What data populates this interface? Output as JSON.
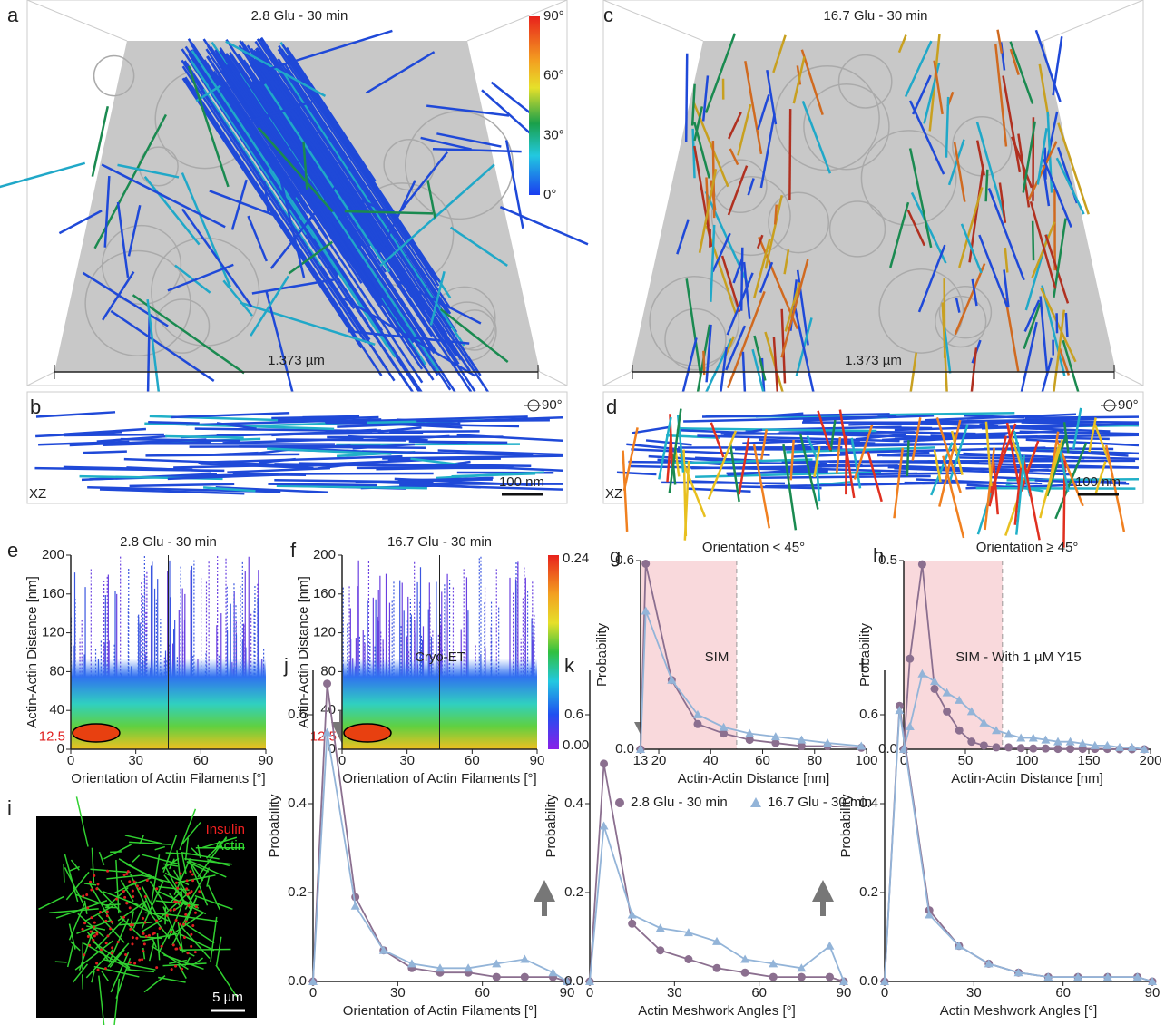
{
  "image_panels": [
    {
      "letter": "a",
      "title": "2.8 Glu - 30 min",
      "scale_label": "1.373 µm",
      "colorbar_labels": [
        "90°",
        "60°",
        "30°",
        "0°"
      ]
    },
    {
      "letter": "b",
      "view_label": "XZ",
      "rotation_label": "90°",
      "scale_label": "100 nm"
    },
    {
      "letter": "c",
      "title": "16.7 Glu - 30 min",
      "scale_label": "1.373 µm"
    },
    {
      "letter": "d",
      "view_label": "XZ",
      "rotation_label": "90°",
      "scale_label": "100 nm"
    },
    {
      "letter": "i",
      "labels": [
        "Insulin",
        "Actin"
      ],
      "scale_label": "5 µm"
    }
  ],
  "chart_data": [
    {
      "type": "heatmap",
      "letter": "e",
      "title": "2.8 Glu - 30 min",
      "xlabel": "Orientation of Actin Filaments [°]",
      "ylabel": "Actin-Actin Distance [nm]",
      "xlim": [
        0,
        90
      ],
      "xticks": [
        0,
        30,
        60,
        90
      ],
      "ylim": [
        0,
        200
      ],
      "yticks": [
        0,
        40,
        80,
        120,
        160,
        200
      ],
      "highlight_tick": 12.5,
      "divider": 45
    },
    {
      "type": "heatmap",
      "letter": "f",
      "title": "16.7 Glu - 30 min",
      "xlabel": "Orientation of Actin Filaments [°]",
      "ylabel": "Actin-Actin Distance [nm]",
      "xlim": [
        0,
        90
      ],
      "xticks": [
        0,
        30,
        60,
        90
      ],
      "ylim": [
        0,
        200
      ],
      "yticks": [
        0,
        40,
        80,
        120,
        160,
        200
      ],
      "highlight_tick": 12.5,
      "divider": 45,
      "colorbar_ticks": [
        0.24,
        {
          "value": 0,
          "label": "0.00"
        }
      ]
    },
    {
      "type": "line",
      "letter": "g",
      "title": "Orientation < 45°",
      "xlabel": "Actin-Actin Distance [nm]",
      "ylabel": "Probability",
      "xlim": [
        13,
        100
      ],
      "xticks": [
        13,
        20,
        40,
        60,
        80,
        100
      ],
      "ylim": [
        0,
        0.6
      ],
      "yticks": [
        {
          "value": 0,
          "label": "0.0"
        },
        0.6
      ],
      "shaded_range": [
        13,
        50
      ],
      "x": [
        13,
        15,
        25,
        35,
        45,
        55,
        65,
        75,
        85,
        98
      ],
      "series": [
        {
          "name": "2.8 Glu - 30 min",
          "color": "#8b6f8f",
          "marker": "circle",
          "values": [
            0,
            0.59,
            0.22,
            0.08,
            0.05,
            0.03,
            0.02,
            0.01,
            0.01,
            0.005
          ]
        },
        {
          "name": "16.7 Glu - 30 min",
          "color": "#93b4d8",
          "marker": "triangle",
          "values": [
            0,
            0.44,
            0.22,
            0.11,
            0.07,
            0.05,
            0.04,
            0.03,
            0.02,
            0.01
          ]
        }
      ]
    },
    {
      "type": "line",
      "letter": "h",
      "title": "Orientation ≥ 45°",
      "xlabel": "Actin-Actin Distance [nm]",
      "ylabel": "Probability",
      "xlim": [
        0,
        200
      ],
      "xticks": [
        0,
        50,
        100,
        150,
        200
      ],
      "ylim": [
        0,
        0.5
      ],
      "yticks": [
        {
          "value": 0,
          "label": "0.0"
        },
        0.5
      ],
      "shaded_range": [
        0,
        80
      ],
      "x": [
        0,
        5,
        15,
        25,
        35,
        45,
        55,
        65,
        75,
        85,
        95,
        105,
        115,
        125,
        135,
        145,
        155,
        165,
        175,
        185,
        195
      ],
      "series": [
        {
          "color": "#8b6f8f",
          "marker": "circle",
          "values": [
            0,
            0.24,
            0.49,
            0.16,
            0.1,
            0.05,
            0.02,
            0.01,
            0.005,
            0.005,
            0.003,
            0.002,
            0.002,
            0.001,
            0.001,
            0.001,
            0.001,
            0.001,
            0,
            0,
            0
          ]
        },
        {
          "color": "#93b4d8",
          "marker": "triangle",
          "values": [
            0,
            0.06,
            0.2,
            0.18,
            0.15,
            0.13,
            0.1,
            0.07,
            0.05,
            0.04,
            0.03,
            0.03,
            0.025,
            0.02,
            0.02,
            0.015,
            0.01,
            0.01,
            0.005,
            0.005,
            0
          ]
        }
      ]
    },
    {
      "type": "line",
      "letter": "j",
      "title": "Cryo-ET",
      "xlabel": "Orientation of Actin Filaments [°]",
      "ylabel": "Probability",
      "xlim": [
        0,
        90
      ],
      "xticks": [
        0,
        30,
        60,
        90
      ],
      "ylim": [
        0,
        0.7
      ],
      "yticks": [
        {
          "value": 0,
          "label": "0.0"
        },
        0.2,
        0.4,
        0.6
      ],
      "x": [
        0,
        5,
        15,
        25,
        35,
        45,
        55,
        65,
        75,
        85,
        90
      ],
      "series": [
        {
          "color": "#8b6f8f",
          "marker": "circle",
          "values": [
            0,
            0.67,
            0.19,
            0.07,
            0.03,
            0.02,
            0.02,
            0.01,
            0.01,
            0.01,
            0
          ]
        },
        {
          "color": "#93b4d8",
          "marker": "triangle",
          "values": [
            0,
            0.56,
            0.17,
            0.07,
            0.04,
            0.03,
            0.03,
            0.04,
            0.05,
            0.02,
            0
          ]
        }
      ]
    },
    {
      "type": "line",
      "letter": "k",
      "title": "SIM",
      "xlabel": "Actin Meshwork Angles [°]",
      "ylabel": "Probability",
      "xlim": [
        0,
        90
      ],
      "xticks": [
        0,
        30,
        60,
        90
      ],
      "ylim": [
        0,
        0.7
      ],
      "yticks": [
        {
          "value": 0,
          "label": "0.0"
        },
        0.2,
        0.4,
        0.6
      ],
      "x": [
        0,
        5,
        15,
        25,
        35,
        45,
        55,
        65,
        75,
        85,
        90
      ],
      "series": [
        {
          "color": "#8b6f8f",
          "marker": "circle",
          "values": [
            0,
            0.49,
            0.13,
            0.07,
            0.05,
            0.03,
            0.02,
            0.01,
            0.01,
            0.01,
            0
          ]
        },
        {
          "color": "#93b4d8",
          "marker": "triangle",
          "values": [
            0,
            0.35,
            0.15,
            0.12,
            0.11,
            0.09,
            0.05,
            0.04,
            0.03,
            0.08,
            0
          ]
        }
      ]
    },
    {
      "type": "line",
      "letter": "l",
      "title": "SIM - With 1 µM Y15",
      "xlabel": "Actin Meshwork Angles [°]",
      "ylabel": "Probability",
      "xlim": [
        0,
        90
      ],
      "xticks": [
        0,
        30,
        60,
        90
      ],
      "ylim": [
        0,
        0.7
      ],
      "yticks": [
        {
          "value": 0,
          "label": "0.0"
        },
        0.2,
        0.4,
        0.6
      ],
      "x": [
        0,
        5,
        15,
        25,
        35,
        45,
        55,
        65,
        75,
        85,
        90
      ],
      "series": [
        {
          "color": "#8b6f8f",
          "marker": "circle",
          "values": [
            0,
            0.62,
            0.16,
            0.08,
            0.04,
            0.02,
            0.01,
            0.01,
            0.01,
            0.01,
            0
          ]
        },
        {
          "color": "#93b4d8",
          "marker": "triangle",
          "values": [
            0,
            0.61,
            0.15,
            0.08,
            0.04,
            0.02,
            0.01,
            0.01,
            0.01,
            0.01,
            0
          ]
        }
      ]
    }
  ]
}
